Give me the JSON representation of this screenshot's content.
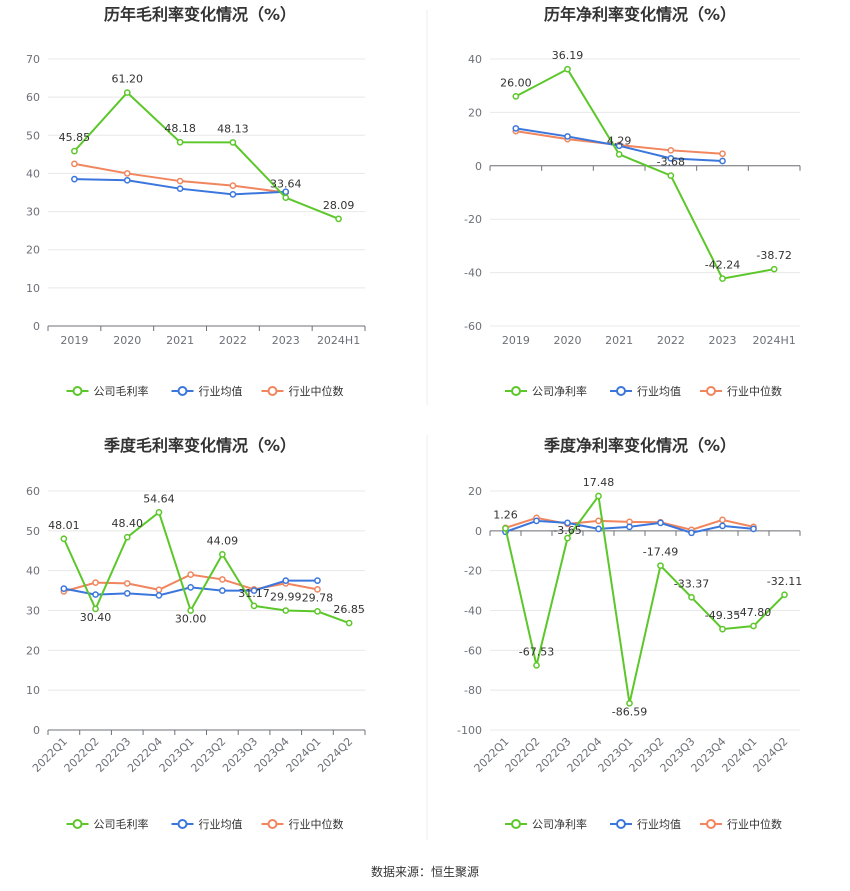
{
  "source_label": "数据来源：恒生聚源",
  "legend_industry_avg": "行业均值",
  "legend_industry_median": "行业中位数",
  "colors": {
    "company": "#5cc72a",
    "avg": "#3b76dd",
    "median": "#f0855e",
    "grid": "#e8e8e8",
    "axis": "#6e7079"
  },
  "chart_data": [
    {
      "type": "line",
      "title": "历年毛利率变化情况（%）",
      "categories": [
        "2019",
        "2020",
        "2021",
        "2022",
        "2023",
        "2024H1"
      ],
      "ylim": [
        0,
        70
      ],
      "yticks": [
        0,
        10,
        20,
        30,
        40,
        50,
        60,
        70
      ],
      "legend_position": "bottom",
      "series": [
        {
          "name": "公司毛利率",
          "role": "company",
          "values": [
            45.85,
            61.2,
            48.18,
            48.13,
            33.64,
            28.09
          ],
          "labels": [
            "45.85",
            "61.20",
            "48.18",
            "48.13",
            "33.64",
            "28.09"
          ]
        },
        {
          "name": "行业均值",
          "role": "avg",
          "values": [
            38.5,
            38.2,
            36.0,
            34.5,
            35.2,
            null
          ]
        },
        {
          "name": "行业中位数",
          "role": "median",
          "values": [
            42.5,
            40.0,
            38.0,
            36.8,
            35.0,
            null
          ]
        }
      ]
    },
    {
      "type": "line",
      "title": "历年净利率变化情况（%）",
      "categories": [
        "2019",
        "2020",
        "2021",
        "2022",
        "2023",
        "2024H1"
      ],
      "ylim": [
        -60,
        40
      ],
      "yticks": [
        -60,
        -40,
        -20,
        0,
        20,
        40
      ],
      "legend_position": "bottom",
      "series": [
        {
          "name": "公司净利率",
          "role": "company",
          "values": [
            26.0,
            36.19,
            4.29,
            -3.68,
            -42.24,
            -38.72
          ],
          "labels": [
            "26.00",
            "36.19",
            "4.29",
            "-3.68",
            "-42.24",
            "-38.72"
          ]
        },
        {
          "name": "行业均值",
          "role": "avg",
          "values": [
            14.0,
            11.0,
            7.5,
            2.8,
            1.8,
            null
          ]
        },
        {
          "name": "行业中位数",
          "role": "median",
          "values": [
            13.0,
            10.0,
            7.8,
            5.8,
            4.5,
            null
          ]
        }
      ]
    },
    {
      "type": "line",
      "title": "季度毛利率变化情况（%）",
      "categories": [
        "2022Q1",
        "2022Q2",
        "2022Q3",
        "2022Q4",
        "2023Q1",
        "2023Q2",
        "2023Q3",
        "2023Q4",
        "2024Q1",
        "2024Q2"
      ],
      "ylim": [
        0,
        60
      ],
      "yticks": [
        0,
        10,
        20,
        30,
        40,
        50,
        60
      ],
      "legend_position": "bottom",
      "series": [
        {
          "name": "公司毛利率",
          "role": "company",
          "values": [
            48.01,
            30.4,
            48.4,
            54.64,
            30.0,
            44.09,
            31.17,
            29.99,
            29.78,
            26.85
          ],
          "labels": [
            "48.01",
            "30.40",
            "48.40",
            "54.64",
            "30.00",
            "44.09",
            "31.17",
            "29.99",
            "29.78",
            "26.85"
          ]
        },
        {
          "name": "行业均值",
          "role": "avg",
          "values": [
            35.5,
            34.0,
            34.3,
            33.8,
            35.8,
            35.0,
            35.0,
            37.5,
            37.5,
            null
          ]
        },
        {
          "name": "行业中位数",
          "role": "median",
          "values": [
            34.8,
            37.0,
            36.8,
            35.2,
            39.0,
            37.8,
            35.3,
            36.8,
            35.3,
            null
          ]
        }
      ]
    },
    {
      "type": "line",
      "title": "季度净利率变化情况（%）",
      "categories": [
        "2022Q1",
        "2022Q2",
        "2022Q3",
        "2022Q4",
        "2023Q1",
        "2023Q2",
        "2023Q3",
        "2023Q4",
        "2024Q1",
        "2024Q2"
      ],
      "ylim": [
        -100,
        20
      ],
      "yticks": [
        -100,
        -80,
        -60,
        -40,
        -20,
        0,
        20
      ],
      "legend_position": "bottom",
      "series": [
        {
          "name": "公司净利率",
          "role": "company",
          "values": [
            1.26,
            -67.53,
            -3.65,
            17.48,
            -86.59,
            -17.49,
            -33.37,
            -49.35,
            -47.8,
            -32.11
          ],
          "labels": [
            "1.26",
            "-67.53",
            "-3.65",
            "17.48",
            "-86.59",
            "-17.49",
            "-33.37",
            "-49.35",
            "-47.80",
            "-32.11"
          ]
        },
        {
          "name": "行业均值",
          "role": "avg",
          "values": [
            -0.5,
            5.0,
            4.0,
            1.0,
            2.0,
            4.0,
            -1.0,
            2.5,
            1.0,
            null
          ]
        },
        {
          "name": "行业中位数",
          "role": "median",
          "values": [
            1.5,
            6.5,
            3.5,
            5.0,
            4.5,
            4.3,
            0.5,
            5.5,
            2.0,
            null
          ]
        }
      ]
    }
  ]
}
